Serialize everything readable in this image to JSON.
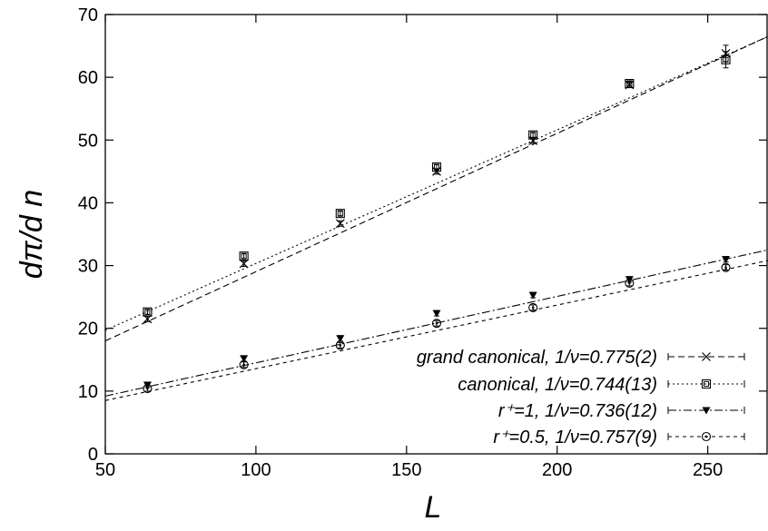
{
  "chart_data": {
    "type": "scatter",
    "xlabel": "L",
    "ylabel": "dπ/d n",
    "xlim": [
      50,
      270
    ],
    "ylim": [
      0,
      70
    ],
    "x_ticks": [
      50,
      100,
      150,
      200,
      250
    ],
    "y_ticks": [
      0,
      10,
      20,
      30,
      40,
      50,
      60,
      70
    ],
    "grid": false,
    "legend_position": "bottom-right",
    "x": [
      64,
      96,
      128,
      160,
      192,
      224,
      256
    ],
    "series": [
      {
        "name": "grand canonical, 1/ν=0.775(2)",
        "marker": "cross",
        "line_style": "dashed",
        "values": [
          21.5,
          30.3,
          36.7,
          45.0,
          49.9,
          58.8,
          63.8
        ],
        "fit_line": [
          [
            50,
            18.0
          ],
          [
            270,
            66.5
          ]
        ]
      },
      {
        "name": "canonical, 1/ν=0.744(13)",
        "marker": "square",
        "line_style": "dotted",
        "values": [
          22.6,
          31.5,
          38.3,
          45.7,
          50.8,
          59.0,
          62.8
        ],
        "fit_line": [
          [
            50,
            19.7
          ],
          [
            270,
            66.5
          ]
        ]
      },
      {
        "name": "r⁺=1, 1/ν=0.736(12)",
        "marker": "triangle-down",
        "line_style": "dash-dot",
        "values": [
          11.0,
          15.2,
          18.4,
          22.4,
          25.3,
          27.8,
          31.0
        ],
        "fit_line": [
          [
            50,
            9.2
          ],
          [
            270,
            32.5
          ]
        ]
      },
      {
        "name": "r⁺=0.5, 1/ν=0.757(9)",
        "marker": "circle",
        "line_style": "short-dash",
        "values": [
          10.4,
          14.2,
          17.3,
          20.8,
          23.3,
          27.2,
          29.7
        ],
        "fit_line": [
          [
            50,
            8.5
          ],
          [
            270,
            30.8
          ]
        ]
      }
    ]
  }
}
